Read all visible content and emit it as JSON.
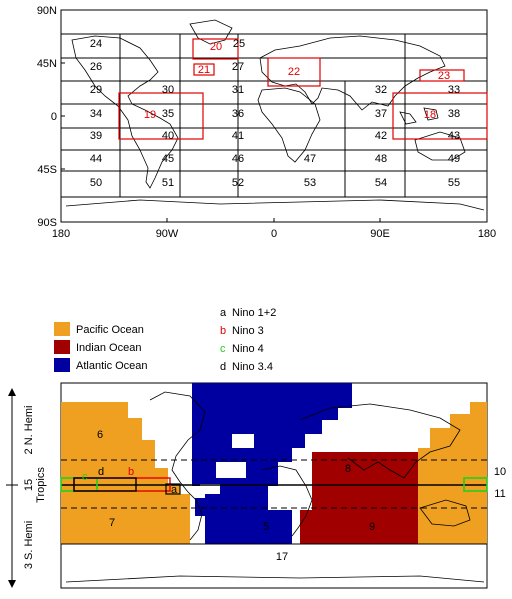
{
  "top_map": {
    "y_ticks": [
      {
        "label": "90N"
      },
      {
        "label": "45N"
      },
      {
        "label": "0"
      },
      {
        "label": "45S"
      },
      {
        "label": "90S"
      }
    ],
    "x_ticks": [
      {
        "label": "180"
      },
      {
        "label": "90W"
      },
      {
        "label": "0"
      },
      {
        "label": "90E"
      },
      {
        "label": "180"
      }
    ],
    "black_regions": [
      "24",
      "25",
      "26",
      "27",
      "29",
      "30",
      "31",
      "32",
      "33",
      "34",
      "35",
      "36",
      "37",
      "38",
      "39",
      "40",
      "41",
      "42",
      "43",
      "44",
      "45",
      "46",
      "47",
      "48",
      "49",
      "50",
      "51",
      "52",
      "53",
      "54",
      "55"
    ],
    "red_regions": [
      "19",
      "20",
      "21",
      "22",
      "23",
      "18"
    ]
  },
  "bottom_map": {
    "legend_basins": [
      {
        "label": "Pacific Ocean",
        "color": "#F0A020"
      },
      {
        "label": "Indian Ocean",
        "color": "#A00000"
      },
      {
        "label": "Atlantic Ocean",
        "color": "#0000A0"
      }
    ],
    "legend_nino": [
      {
        "letter": "a",
        "label": "Nino 1+2",
        "color": "#000000"
      },
      {
        "letter": "b",
        "label": "Nino 3",
        "color": "#E00000"
      },
      {
        "letter": "c",
        "label": "Nino 4",
        "color": "#20D020"
      },
      {
        "letter": "d",
        "label": "Nino 3.4",
        "color": "#000000"
      }
    ],
    "side_labels": {
      "north": "2 N. Hemi",
      "tropics": "Tropics",
      "tropics_num": "15",
      "south": "3 S. Hemi"
    },
    "region_labels": [
      "6",
      "7",
      "5",
      "8",
      "9",
      "10",
      "11",
      "17"
    ],
    "box_letters": [
      "a",
      "b",
      "c",
      "d"
    ]
  }
}
